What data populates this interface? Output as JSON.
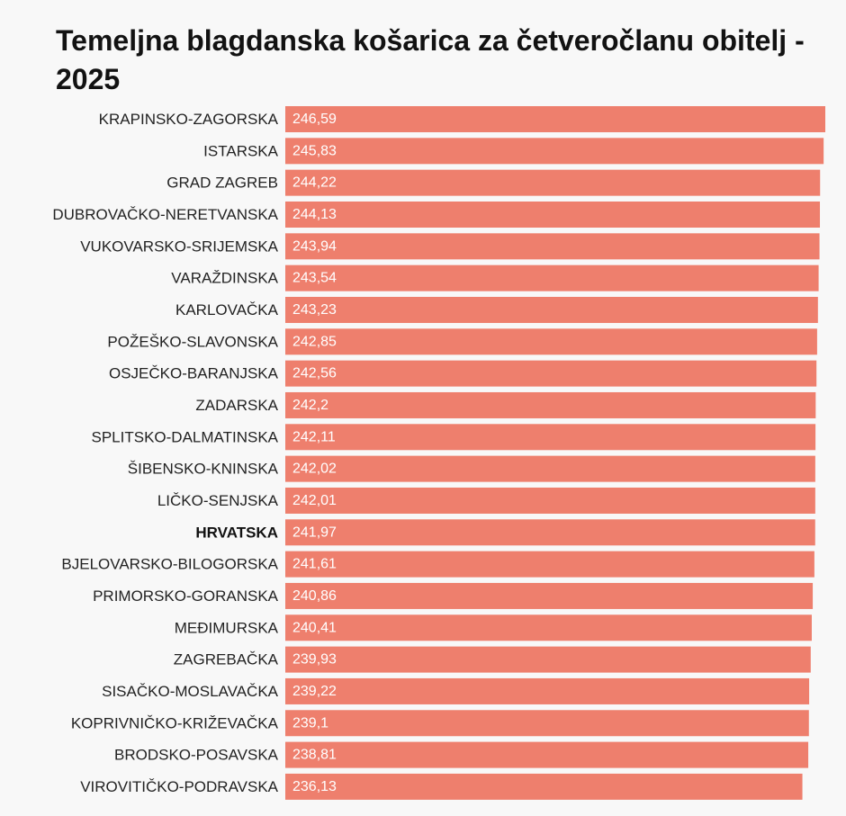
{
  "chart_data": {
    "type": "bar",
    "orientation": "horizontal",
    "title": "Temeljna blagdanska košarica za četveročlanu obitelj - 2025",
    "xlabel": "",
    "ylabel": "",
    "bar_color": "#ee7f6d",
    "highlight_category": "HRVATSKA",
    "categories": [
      "KRAPINSKO-ZAGORSKA",
      "ISTARSKA",
      "GRAD ZAGREB",
      "DUBROVAČKO-NERETVANSKA",
      "VUKOVARSKO-SRIJEMSKA",
      "VARAŽDINSKA",
      "KARLOVAČKA",
      "POŽEŠKO-SLAVONSKA",
      "OSJEČKO-BARANJSKA",
      "ZADARSKA",
      "SPLITSKO-DALMATINSKA",
      "ŠIBENSKO-KNINSKA",
      "LIČKO-SENJSKA",
      "HRVATSKA",
      "BJELOVARSKO-BILOGORSKA",
      "PRIMORSKO-GORANSKA",
      "MEĐIMURSKA",
      "ZAGREBAČKA",
      "SISAČKO-MOSLAVAČKA",
      "KOPRIVNIČKO-KRIŽEVAČKA",
      "BRODSKO-POSAVSKA",
      "VIROVITIČKO-PODRAVSKA"
    ],
    "values": [
      246.59,
      245.83,
      244.22,
      244.13,
      243.94,
      243.54,
      243.23,
      242.85,
      242.56,
      242.2,
      242.11,
      242.02,
      242.01,
      241.97,
      241.61,
      240.86,
      240.41,
      239.93,
      239.22,
      239.1,
      238.81,
      236.13
    ],
    "value_labels": [
      "246,59",
      "245,83",
      "244,22",
      "244,13",
      "243,94",
      "243,54",
      "243,23",
      "242,85",
      "242,56",
      "242,2",
      "242,11",
      "242,02",
      "242,01",
      "241,97",
      "241,61",
      "240,86",
      "240,41",
      "239,93",
      "239,22",
      "239,1",
      "238,81",
      "236,13"
    ],
    "xlim": [
      0,
      246.59
    ]
  }
}
